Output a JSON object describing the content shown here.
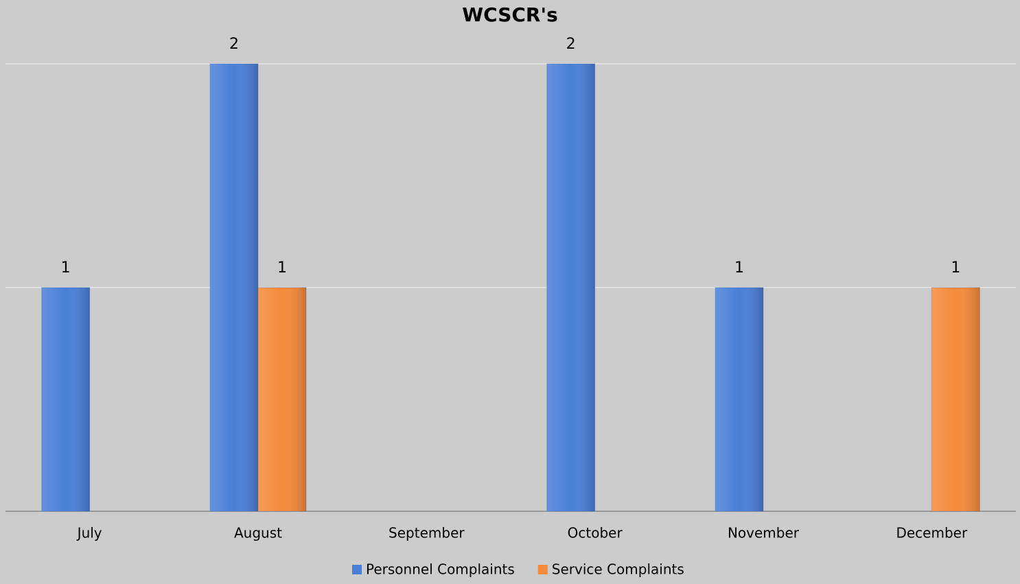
{
  "chart_data": {
    "type": "bar",
    "title": "WCSCR's",
    "categories": [
      "July",
      "August",
      "September",
      "October",
      "November",
      "December"
    ],
    "series": [
      {
        "name": "Personnel Complaints",
        "color": "#4a7fd8",
        "values": [
          1,
          2,
          null,
          2,
          1,
          null
        ]
      },
      {
        "name": "Service Complaints",
        "color": "#f58a3a",
        "values": [
          null,
          1,
          null,
          null,
          null,
          1
        ]
      }
    ],
    "ylim": [
      0,
      2
    ],
    "yticks": [
      0,
      1,
      2
    ],
    "grid": true,
    "ytick_labels": false,
    "legend": "bottom"
  }
}
